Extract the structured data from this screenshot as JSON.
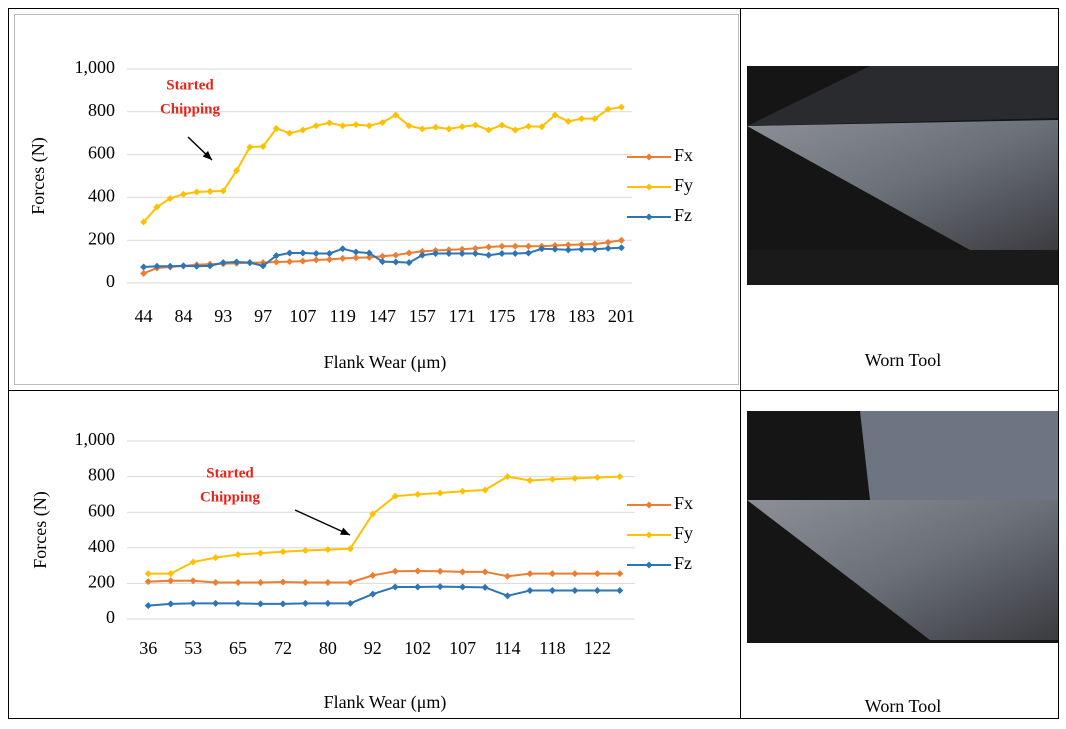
{
  "chart_data": [
    {
      "type": "line",
      "x_label": "Flank Wear (μm)",
      "y_label": "Forces (N)",
      "annotation": [
        "Started",
        "Chipping"
      ],
      "categories": [
        "44",
        null,
        null,
        "84",
        null,
        null,
        "93",
        null,
        null,
        "97",
        null,
        null,
        "107",
        null,
        null,
        "119",
        null,
        null,
        "147",
        null,
        null,
        "157",
        null,
        null,
        "171",
        null,
        null,
        "175",
        null,
        null,
        "178",
        null,
        null,
        "183",
        null,
        null,
        "201"
      ],
      "ylim": [
        0,
        1000
      ],
      "yticks": [
        0,
        200,
        400,
        600,
        800,
        {
          "value": 1000,
          "label": "1,000"
        }
      ],
      "grid": true,
      "legend": "right",
      "series": [
        {
          "name": "Fx",
          "color": "#ED7D31",
          "values": [
            45,
            70,
            75,
            80,
            85,
            88,
            90,
            92,
            95,
            95,
            98,
            100,
            102,
            108,
            110,
            115,
            118,
            120,
            125,
            130,
            140,
            148,
            152,
            155,
            158,
            162,
            168,
            172,
            172,
            172,
            172,
            175,
            178,
            180,
            182,
            190,
            200
          ]
        },
        {
          "name": "Fy",
          "color": "#FFC000",
          "values": [
            285,
            355,
            395,
            415,
            425,
            428,
            430,
            525,
            635,
            638,
            722,
            700,
            715,
            735,
            748,
            735,
            740,
            735,
            750,
            785,
            735,
            720,
            728,
            720,
            730,
            738,
            715,
            738,
            715,
            732,
            730,
            785,
            755,
            768,
            768,
            812,
            822
          ]
        },
        {
          "name": "Fz",
          "color": "#2E75B6",
          "values": [
            75,
            78,
            78,
            80,
            78,
            80,
            95,
            98,
            95,
            80,
            128,
            140,
            140,
            138,
            138,
            160,
            145,
            140,
            100,
            98,
            95,
            130,
            138,
            138,
            138,
            138,
            130,
            138,
            138,
            140,
            160,
            158,
            155,
            158,
            158,
            162,
            165
          ]
        }
      ]
    },
    {
      "type": "line",
      "x_label": "Flank Wear (μm)",
      "y_label": "Forces (N)",
      "annotation": [
        "Started",
        "Chipping"
      ],
      "categories": [
        "36",
        null,
        "53",
        null,
        "65",
        null,
        "72",
        null,
        "80",
        null,
        "92",
        null,
        "102",
        null,
        "107",
        null,
        "114",
        null,
        "118",
        null,
        "122",
        null
      ],
      "ylim": [
        0,
        1000
      ],
      "yticks": [
        0,
        200,
        400,
        600,
        800,
        {
          "value": 1000,
          "label": "1,000"
        }
      ],
      "grid": true,
      "legend": "right",
      "series": [
        {
          "name": "Fx",
          "color": "#ED7D31",
          "values": [
            210,
            215,
            215,
            205,
            205,
            205,
            208,
            205,
            205,
            205,
            245,
            268,
            270,
            268,
            265,
            265,
            240,
            255,
            255,
            255,
            255,
            255
          ]
        },
        {
          "name": "Fy",
          "color": "#FFC000",
          "values": [
            255,
            255,
            320,
            345,
            362,
            370,
            378,
            385,
            390,
            395,
            590,
            690,
            700,
            708,
            718,
            725,
            800,
            778,
            785,
            790,
            795,
            800
          ]
        },
        {
          "name": "Fz",
          "color": "#2E75B6",
          "values": [
            75,
            85,
            88,
            88,
            88,
            85,
            85,
            88,
            88,
            88,
            140,
            180,
            180,
            182,
            180,
            178,
            130,
            160,
            160,
            160,
            160,
            160
          ]
        }
      ]
    }
  ],
  "captions": [
    "Worn Tool",
    "Worn Tool"
  ]
}
